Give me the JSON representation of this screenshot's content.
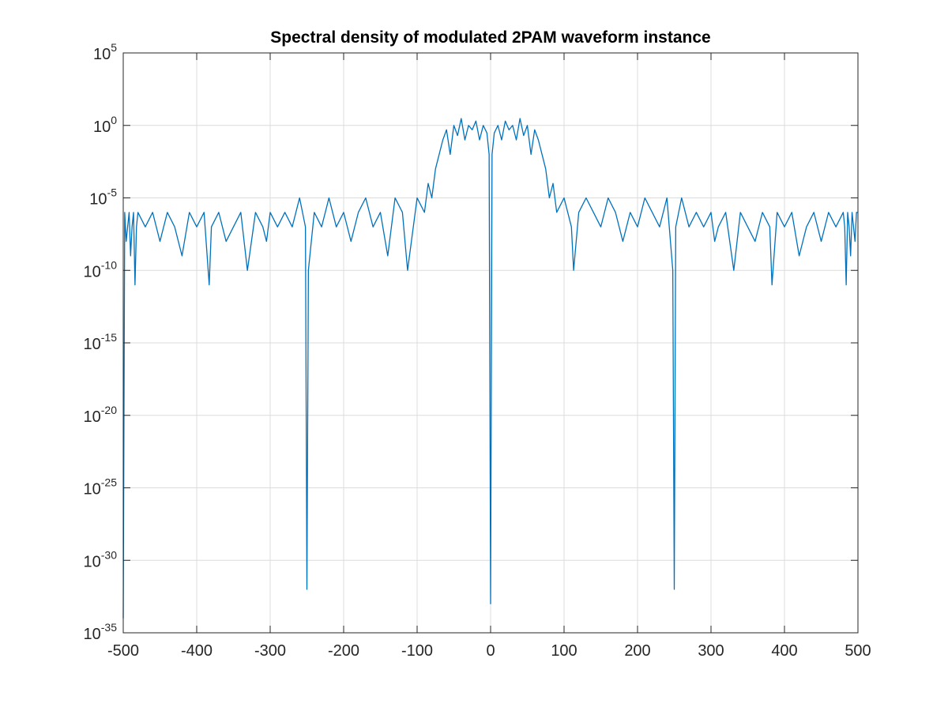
{
  "chart_data": {
    "type": "line",
    "title": "Spectral density of modulated 2PAM waveform instance",
    "xlabel": "",
    "ylabel": "",
    "xlim": [
      -500,
      500
    ],
    "ylim": [
      1e-35,
      100000.0
    ],
    "yscale": "log",
    "grid": true,
    "legend": "none",
    "x_ticks": [
      -500,
      -400,
      -300,
      -200,
      -100,
      0,
      100,
      200,
      300,
      400,
      500
    ],
    "x_tick_labels": [
      "-500",
      "-400",
      "-300",
      "-200",
      "-100",
      "0",
      "100",
      "200",
      "300",
      "400",
      "500"
    ],
    "y_ticks": [
      {
        "base": "10",
        "exp": "-35",
        "value": 1e-35
      },
      {
        "base": "10",
        "exp": "-30",
        "value": 1e-30
      },
      {
        "base": "10",
        "exp": "-25",
        "value": 1e-25
      },
      {
        "base": "10",
        "exp": "-20",
        "value": 1e-20
      },
      {
        "base": "10",
        "exp": "-15",
        "value": 1e-15
      },
      {
        "base": "10",
        "exp": "-10",
        "value": 1e-10
      },
      {
        "base": "10",
        "exp": "-5",
        "value": 1e-05
      },
      {
        "base": "10",
        "exp": "0",
        "value": 1
      },
      {
        "base": "10",
        "exp": "5",
        "value": 100000.0
      }
    ],
    "series": [
      {
        "color": "#0072BD",
        "x": [
          -500,
          -498,
          -496,
          -494,
          -492,
          -490,
          -488,
          -486,
          -484,
          -482,
          -480,
          -470,
          -460,
          -450,
          -440,
          -430,
          -420,
          -410,
          -400,
          -390,
          -383,
          -380,
          -370,
          -360,
          -350,
          -340,
          -331,
          -320,
          -310,
          -305,
          -300,
          -290,
          -280,
          -270,
          -260,
          -252,
          -250,
          -248,
          -240,
          -230,
          -220,
          -210,
          -200,
          -190,
          -180,
          -170,
          -160,
          -150,
          -140,
          -130,
          -120,
          -113,
          -100,
          -90,
          -85,
          -80,
          -75,
          -70,
          -65,
          -60,
          -55,
          -50,
          -45,
          -40,
          -35,
          -30,
          -25,
          -20,
          -15,
          -10,
          -5,
          -2,
          0,
          2,
          5,
          10,
          15,
          20,
          25,
          30,
          35,
          40,
          45,
          50,
          55,
          60,
          65,
          70,
          75,
          80,
          85,
          90,
          100,
          110,
          113,
          120,
          130,
          140,
          150,
          160,
          170,
          180,
          190,
          200,
          210,
          220,
          230,
          240,
          248,
          250,
          252,
          260,
          270,
          280,
          290,
          300,
          305,
          310,
          320,
          331,
          340,
          350,
          360,
          370,
          380,
          383,
          390,
          400,
          410,
          420,
          430,
          440,
          450,
          460,
          470,
          480,
          482,
          484,
          486,
          488,
          490,
          492,
          494,
          496,
          498,
          500
        ],
        "y": [
          1e-34,
          1e-06,
          1e-08,
          1e-07,
          1e-06,
          1e-09,
          1e-07,
          1e-06,
          1e-11,
          1e-07,
          1e-06,
          1e-07,
          1e-06,
          1e-08,
          1e-06,
          1e-07,
          1e-09,
          1e-06,
          1e-07,
          1e-06,
          1e-11,
          1e-07,
          1e-06,
          1e-08,
          1e-07,
          1e-06,
          1e-10,
          1e-06,
          1e-07,
          1e-08,
          1e-06,
          1e-07,
          1e-06,
          1e-07,
          1e-05,
          1e-07,
          1e-32,
          1e-10,
          1e-06,
          1e-07,
          1e-05,
          1e-07,
          1e-06,
          1e-08,
          1e-06,
          1e-05,
          1e-07,
          1e-06,
          1e-09,
          1e-05,
          1e-06,
          1e-10,
          1e-05,
          1e-06,
          0.0001,
          1e-05,
          0.001,
          0.01,
          0.1,
          0.5,
          0.01,
          1,
          0.2,
          3,
          0.1,
          1,
          0.5,
          2,
          0.1,
          1,
          0.3,
          0.01,
          1e-33,
          0.01,
          0.3,
          1,
          0.1,
          2,
          0.5,
          1,
          0.1,
          3,
          0.2,
          1,
          0.01,
          0.5,
          0.1,
          0.01,
          0.001,
          1e-05,
          0.0001,
          1e-06,
          1e-05,
          1e-07,
          1e-10,
          1e-06,
          1e-05,
          1e-06,
          1e-07,
          1e-05,
          1e-06,
          1e-08,
          1e-06,
          1e-07,
          1e-05,
          1e-06,
          1e-07,
          1e-05,
          1e-10,
          1e-32,
          1e-07,
          1e-05,
          1e-07,
          1e-06,
          1e-07,
          1e-06,
          1e-08,
          1e-07,
          1e-06,
          1e-10,
          1e-06,
          1e-07,
          1e-08,
          1e-06,
          1e-07,
          1e-11,
          1e-06,
          1e-07,
          1e-06,
          1e-09,
          1e-07,
          1e-06,
          1e-08,
          1e-06,
          1e-07,
          1e-06,
          1e-07,
          1e-11,
          1e-06,
          1e-07,
          1e-09,
          1e-06,
          1e-07,
          1e-08,
          1e-06,
          1e-06
        ]
      }
    ]
  }
}
